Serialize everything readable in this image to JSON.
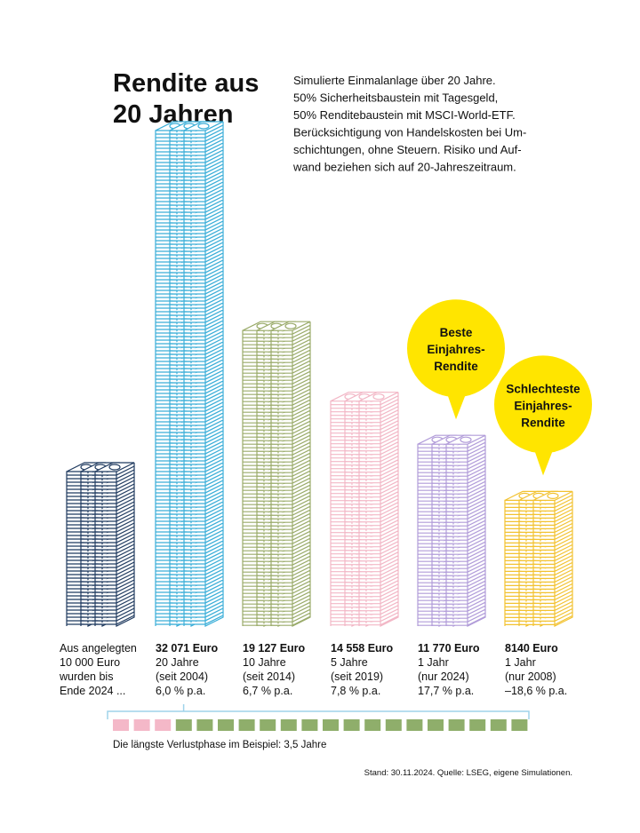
{
  "chart_data": {
    "type": "stack",
    "title": [
      "Rendite aus",
      "20 Jahren"
    ],
    "subtitle": [
      "Simulierte Einmalanlage über 20 Jahre.",
      "50% Sicherheitsbaustein mit Tagesgeld,",
      "50% Renditebaustein mit MSCI-World-ETF.",
      "Berücksichtigung von Handelskosten bei Um-",
      "schichtungen, ohne Steuern. Risiko und Auf-",
      "wand beziehen sich auf 20-Jahreszeitraum."
    ],
    "lead": "Aus angelegten",
    "values": [
      10000,
      32071,
      19127,
      14558,
      11770,
      8140
    ],
    "value_labels": [
      "10 000 Euro",
      "32 071 Euro",
      "19 127 Euro",
      "14 558 Euro",
      "11 770 Euro",
      "8140 Euro"
    ],
    "descriptions": [
      [
        "wurden bis",
        "Ende 2024 ..."
      ],
      [
        "20 Jahre",
        "(seit 2004)",
        "6,0 % p.a."
      ],
      [
        "10 Jahre",
        "(seit 2014)",
        "6,7 % p.a."
      ],
      [
        "5 Jahre",
        "(seit 2019)",
        "7,8 % p.a."
      ],
      [
        "1 Jahr",
        "(nur 2024)",
        "17,7 % p.a."
      ],
      [
        "1 Jahr",
        "(nur 2008)",
        "–18,6 % p.a."
      ]
    ],
    "colors": [
      "#1f3a5f",
      "#3aaed8",
      "#9aab6a",
      "#f2b7c6",
      "#b19cd9",
      "#f2c230"
    ],
    "callouts": [
      {
        "column": 4,
        "lines": [
          "Beste",
          "Einjahres-",
          "Rendite"
        ]
      },
      {
        "column": 5,
        "lines": [
          "Schlechteste",
          "Einjahres-",
          "Rendite"
        ]
      }
    ],
    "callout_color": "#ffe500",
    "timeline": {
      "years": 20,
      "loss_years": 3.5,
      "loss_color": "#f4b8c8",
      "gain_color": "#8fae6b",
      "bracket_color": "#9fd3ea",
      "caption": "Die längste Verlustphase im Beispiel: 3,5 Jahre"
    },
    "source": "Stand: 30.11.2024. Quelle: LSEG, eigene Simulationen."
  }
}
